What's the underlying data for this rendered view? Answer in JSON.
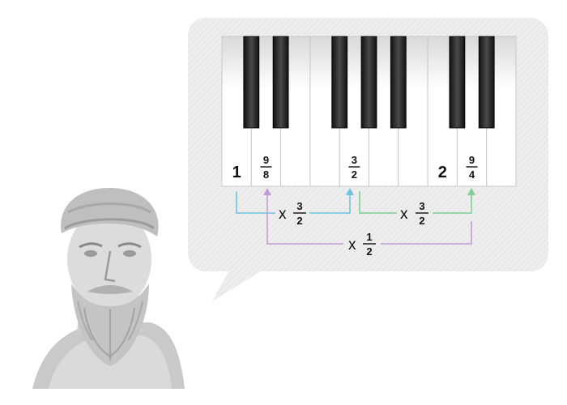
{
  "colors": {
    "bubble": "#ececec",
    "white_key": "#ffffff",
    "black_key": "#2a2a2a",
    "blue": "#6fc3e0",
    "green": "#7fcf95",
    "purple": "#c39ad6"
  },
  "figure": {
    "name": "pythagoras-bust",
    "icon": "bust-statue-icon"
  },
  "keys": {
    "labels": [
      {
        "key_index": 0,
        "kind": "whole",
        "text": "1"
      },
      {
        "key_index": 1,
        "kind": "fraction",
        "num": "9",
        "den": "8"
      },
      {
        "key_index": 4,
        "kind": "fraction",
        "num": "3",
        "den": "2"
      },
      {
        "key_index": 7,
        "kind": "whole",
        "text": "2"
      },
      {
        "key_index": 8,
        "kind": "fraction",
        "num": "9",
        "den": "4"
      }
    ]
  },
  "multipliers": {
    "blue": {
      "times": "x",
      "num": "3",
      "den": "2"
    },
    "green": {
      "times": "x",
      "num": "3",
      "den": "2"
    },
    "purple": {
      "times": "x",
      "num": "1",
      "den": "2"
    }
  }
}
